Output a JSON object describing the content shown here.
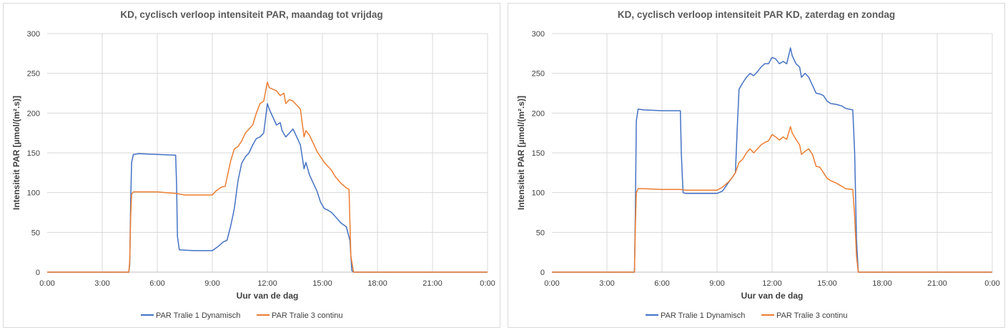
{
  "chart_data": [
    {
      "type": "line",
      "title": "KD, cyclisch verloop intensiteit PAR, maandag tot vrijdag",
      "xlabel": "Uur van de dag",
      "ylabel": "Intensiteit PAR [µmol/(m².s)]",
      "ylim": [
        0,
        300
      ],
      "xlim_hours": [
        0,
        24
      ],
      "yticks": [
        "0",
        "50",
        "100",
        "150",
        "200",
        "250",
        "300"
      ],
      "xticks": [
        "0:00",
        "3:00",
        "6:00",
        "9:00",
        "12:00",
        "15:00",
        "18:00",
        "21:00",
        "0:00"
      ],
      "grid": true,
      "legend": "bottom",
      "series": [
        {
          "name": "PAR Tralie 1 Dynamisch",
          "color": "#4472C4",
          "points": [
            [
              0,
              0
            ],
            [
              4.45,
              0
            ],
            [
              4.5,
              10
            ],
            [
              4.55,
              90
            ],
            [
              4.6,
              138
            ],
            [
              4.7,
              148
            ],
            [
              5.0,
              149
            ],
            [
              6.0,
              148
            ],
            [
              7.0,
              147
            ],
            [
              7.05,
              110
            ],
            [
              7.1,
              45
            ],
            [
              7.2,
              28
            ],
            [
              8.0,
              27
            ],
            [
              9.0,
              27
            ],
            [
              9.3,
              32
            ],
            [
              9.6,
              38
            ],
            [
              9.8,
              40
            ],
            [
              10.0,
              58
            ],
            [
              10.2,
              80
            ],
            [
              10.4,
              115
            ],
            [
              10.6,
              137
            ],
            [
              10.8,
              145
            ],
            [
              11.0,
              150
            ],
            [
              11.2,
              160
            ],
            [
              11.4,
              168
            ],
            [
              11.6,
              170
            ],
            [
              11.8,
              175
            ],
            [
              12.0,
              212
            ],
            [
              12.1,
              205
            ],
            [
              12.3,
              195
            ],
            [
              12.5,
              185
            ],
            [
              12.7,
              188
            ],
            [
              12.8,
              178
            ],
            [
              13.0,
              170
            ],
            [
              13.2,
              175
            ],
            [
              13.4,
              180
            ],
            [
              13.6,
              170
            ],
            [
              13.8,
              160
            ],
            [
              14.0,
              130
            ],
            [
              14.1,
              138
            ],
            [
              14.3,
              122
            ],
            [
              14.5,
              112
            ],
            [
              14.7,
              102
            ],
            [
              14.9,
              88
            ],
            [
              15.1,
              80
            ],
            [
              15.3,
              78
            ],
            [
              15.5,
              75
            ],
            [
              15.7,
              70
            ],
            [
              16.0,
              62
            ],
            [
              16.3,
              57
            ],
            [
              16.5,
              40
            ],
            [
              16.6,
              2
            ],
            [
              16.7,
              0
            ],
            [
              24,
              0
            ]
          ]
        },
        {
          "name": "PAR Tralie 3 continu",
          "color": "#ED7D31",
          "points": [
            [
              0,
              0
            ],
            [
              4.45,
              0
            ],
            [
              4.5,
              15
            ],
            [
              4.55,
              70
            ],
            [
              4.6,
              98
            ],
            [
              4.7,
              101
            ],
            [
              5.0,
              101
            ],
            [
              6.0,
              101
            ],
            [
              6.5,
              100
            ],
            [
              7.0,
              99
            ],
            [
              7.5,
              97
            ],
            [
              8.0,
              97
            ],
            [
              9.0,
              97
            ],
            [
              9.2,
              102
            ],
            [
              9.5,
              107
            ],
            [
              9.7,
              108
            ],
            [
              10.0,
              140
            ],
            [
              10.2,
              155
            ],
            [
              10.4,
              158
            ],
            [
              10.6,
              165
            ],
            [
              10.8,
              175
            ],
            [
              11.0,
              180
            ],
            [
              11.2,
              185
            ],
            [
              11.4,
              200
            ],
            [
              11.6,
              212
            ],
            [
              11.8,
              215
            ],
            [
              12.0,
              239
            ],
            [
              12.1,
              232
            ],
            [
              12.3,
              230
            ],
            [
              12.5,
              228
            ],
            [
              12.7,
              222
            ],
            [
              12.9,
              225
            ],
            [
              13.0,
              212
            ],
            [
              13.2,
              217
            ],
            [
              13.4,
              215
            ],
            [
              13.6,
              210
            ],
            [
              13.8,
              205
            ],
            [
              14.0,
              170
            ],
            [
              14.1,
              178
            ],
            [
              14.3,
              172
            ],
            [
              14.5,
              162
            ],
            [
              14.7,
              152
            ],
            [
              14.9,
              145
            ],
            [
              15.1,
              138
            ],
            [
              15.3,
              133
            ],
            [
              15.5,
              128
            ],
            [
              15.7,
              120
            ],
            [
              16.0,
              112
            ],
            [
              16.3,
              106
            ],
            [
              16.45,
              104
            ],
            [
              16.55,
              20
            ],
            [
              16.7,
              0
            ],
            [
              24,
              0
            ]
          ]
        }
      ]
    },
    {
      "type": "line",
      "title": "KD, cyclisch verloop intensiteit PAR KD, zaterdag en zondag",
      "xlabel": "Uur van de dag",
      "ylabel": "Intensiteit PAR [µmol/(m².s)]",
      "ylim": [
        0,
        300
      ],
      "xlim_hours": [
        0,
        24
      ],
      "yticks": [
        "0",
        "50",
        "100",
        "150",
        "200",
        "250",
        "300"
      ],
      "xticks": [
        "0:00",
        "3:00",
        "6:00",
        "9:00",
        "12:00",
        "15:00",
        "18:00",
        "21:00",
        "0:00"
      ],
      "grid": true,
      "legend": "bottom",
      "series": [
        {
          "name": "PAR Tralie 1 Dynamisch",
          "color": "#4472C4",
          "points": [
            [
              0,
              0
            ],
            [
              4.5,
              0
            ],
            [
              4.55,
              80
            ],
            [
              4.6,
              190
            ],
            [
              4.7,
              205
            ],
            [
              5.0,
              204
            ],
            [
              6.0,
              203
            ],
            [
              7.0,
              203
            ],
            [
              7.05,
              150
            ],
            [
              7.15,
              100
            ],
            [
              7.3,
              99
            ],
            [
              8.0,
              99
            ],
            [
              9.0,
              99
            ],
            [
              9.3,
              102
            ],
            [
              9.6,
              112
            ],
            [
              9.8,
              118
            ],
            [
              10.0,
              125
            ],
            [
              10.1,
              180
            ],
            [
              10.2,
              230
            ],
            [
              10.4,
              238
            ],
            [
              10.6,
              245
            ],
            [
              10.8,
              250
            ],
            [
              11.0,
              247
            ],
            [
              11.2,
              252
            ],
            [
              11.4,
              258
            ],
            [
              11.6,
              262
            ],
            [
              11.8,
              262
            ],
            [
              12.0,
              270
            ],
            [
              12.2,
              268
            ],
            [
              12.4,
              262
            ],
            [
              12.6,
              265
            ],
            [
              12.8,
              262
            ],
            [
              13.0,
              282
            ],
            [
              13.1,
              272
            ],
            [
              13.3,
              262
            ],
            [
              13.5,
              258
            ],
            [
              13.6,
              245
            ],
            [
              13.8,
              250
            ],
            [
              14.0,
              245
            ],
            [
              14.2,
              235
            ],
            [
              14.4,
              225
            ],
            [
              14.6,
              224
            ],
            [
              14.8,
              222
            ],
            [
              15.0,
              215
            ],
            [
              15.2,
              212
            ],
            [
              15.5,
              211
            ],
            [
              15.8,
              209
            ],
            [
              16.0,
              206
            ],
            [
              16.4,
              204
            ],
            [
              16.5,
              150
            ],
            [
              16.6,
              40
            ],
            [
              16.7,
              0
            ],
            [
              24,
              0
            ]
          ]
        },
        {
          "name": "PAR Tralie 3 continu",
          "color": "#ED7D31",
          "points": [
            [
              0,
              0
            ],
            [
              4.5,
              0
            ],
            [
              4.55,
              60
            ],
            [
              4.6,
              100
            ],
            [
              4.7,
              105
            ],
            [
              5.0,
              105
            ],
            [
              6.0,
              104
            ],
            [
              7.0,
              104
            ],
            [
              7.3,
              103
            ],
            [
              8.0,
              103
            ],
            [
              9.0,
              103
            ],
            [
              9.3,
              107
            ],
            [
              9.6,
              113
            ],
            [
              9.8,
              118
            ],
            [
              10.0,
              125
            ],
            [
              10.2,
              138
            ],
            [
              10.4,
              142
            ],
            [
              10.6,
              150
            ],
            [
              10.8,
              155
            ],
            [
              11.0,
              150
            ],
            [
              11.2,
              155
            ],
            [
              11.4,
              160
            ],
            [
              11.6,
              163
            ],
            [
              11.8,
              165
            ],
            [
              12.0,
              173
            ],
            [
              12.2,
              170
            ],
            [
              12.4,
              166
            ],
            [
              12.6,
              170
            ],
            [
              12.8,
              167
            ],
            [
              13.0,
              183
            ],
            [
              13.1,
              175
            ],
            [
              13.3,
              167
            ],
            [
              13.5,
              160
            ],
            [
              13.6,
              148
            ],
            [
              13.8,
              152
            ],
            [
              14.0,
              155
            ],
            [
              14.2,
              148
            ],
            [
              14.4,
              133
            ],
            [
              14.6,
              132
            ],
            [
              14.8,
              125
            ],
            [
              15.0,
              118
            ],
            [
              15.2,
              115
            ],
            [
              15.5,
              112
            ],
            [
              15.8,
              108
            ],
            [
              16.0,
              105
            ],
            [
              16.4,
              104
            ],
            [
              16.5,
              70
            ],
            [
              16.6,
              20
            ],
            [
              16.7,
              0
            ],
            [
              24,
              0
            ]
          ]
        }
      ]
    }
  ]
}
